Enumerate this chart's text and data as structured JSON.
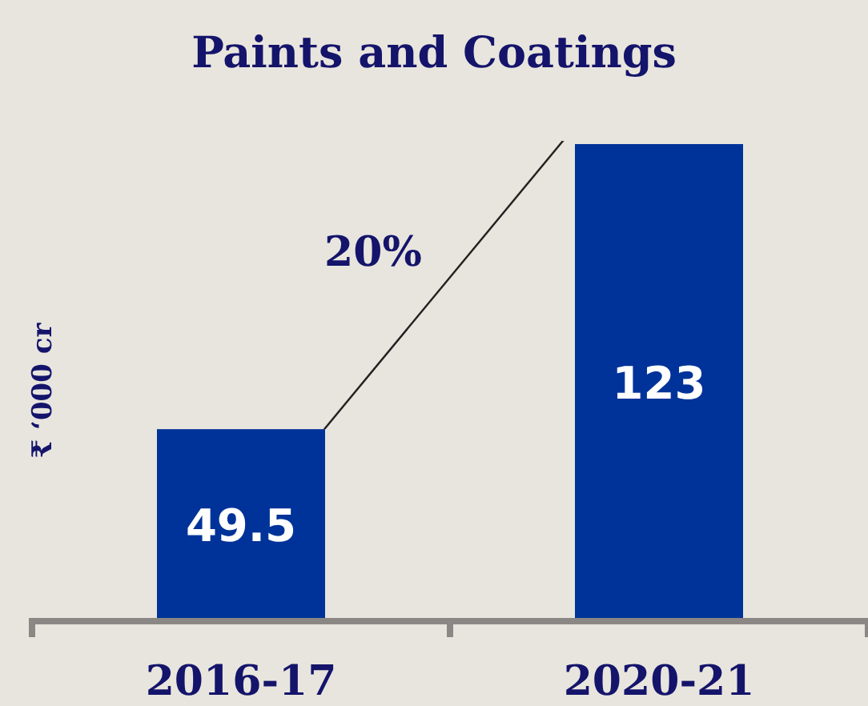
{
  "chart_data": {
    "type": "bar",
    "title": "Paints and Coatings",
    "ylabel": "₹ ‘000 cr",
    "categories": [
      "2016-17",
      "2020-21"
    ],
    "values": [
      49.5,
      123
    ],
    "color": "#003399",
    "data_labels": true,
    "annotations": [
      "20%"
    ]
  }
}
